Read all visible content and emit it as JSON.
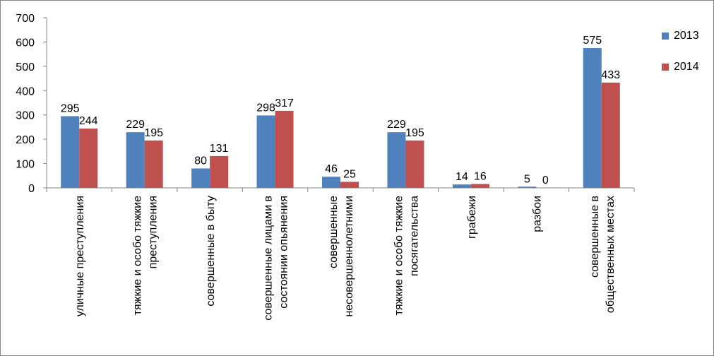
{
  "chart_data": {
    "type": "bar",
    "title": "",
    "xlabel": "",
    "ylabel": "",
    "ylim": [
      0,
      700
    ],
    "yticks": [
      0,
      100,
      200,
      300,
      400,
      500,
      600,
      700
    ],
    "grid": false,
    "legend_position": "right",
    "categories": [
      [
        "уличные преступления"
      ],
      [
        "тяжкие и особо тяжкие",
        "преступления"
      ],
      [
        "совершенные в быту"
      ],
      [
        "совершенные лицами в",
        "состоянии опьянения"
      ],
      [
        "совершенные",
        "несовершеннолетними"
      ],
      [
        "тяжкие и особо тяжкие",
        "посягательства"
      ],
      [
        "грабежи"
      ],
      [
        "разбои"
      ],
      [
        "совершенные в",
        "общественных местах"
      ]
    ],
    "series": [
      {
        "name": "2013",
        "color": "#4F81BD",
        "values": [
          295,
          229,
          80,
          298,
          46,
          229,
          14,
          5,
          575
        ]
      },
      {
        "name": "2014",
        "color": "#C0504D",
        "values": [
          244,
          195,
          131,
          317,
          25,
          195,
          16,
          0,
          433
        ]
      }
    ]
  }
}
